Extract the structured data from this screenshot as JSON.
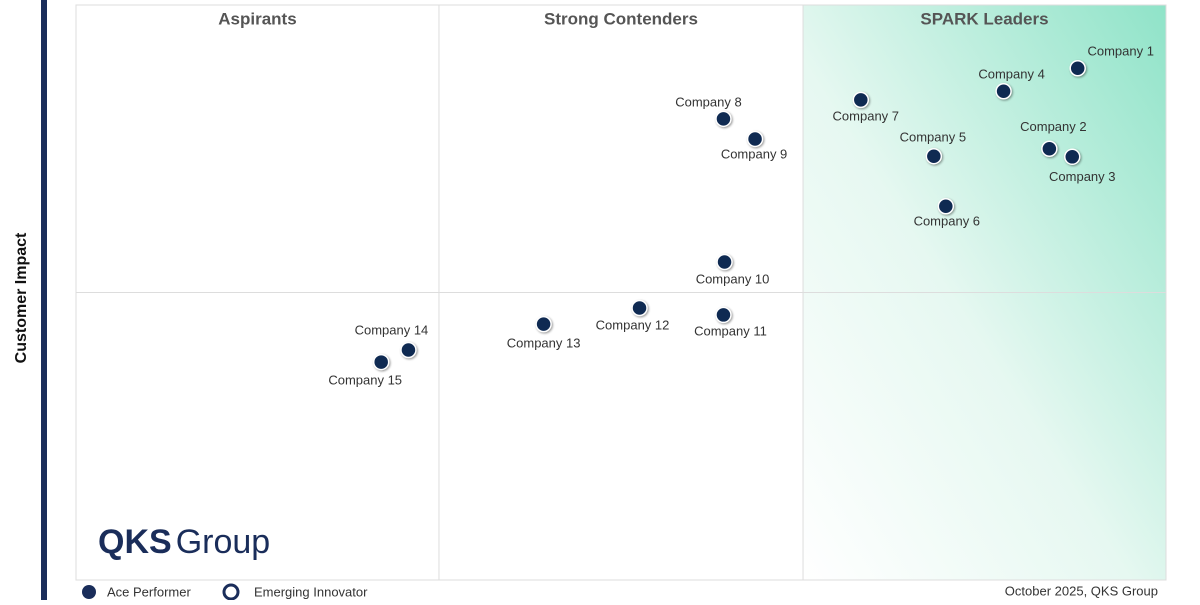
{
  "chart_data": {
    "type": "scatter",
    "y_label": "Customer Impact",
    "quadrants": [
      "Aspirants",
      "Strong Contenders",
      "SPARK Leaders"
    ],
    "x_dividers": [
      33.3,
      66.7
    ],
    "y_dividers": [
      50
    ],
    "xlim": [
      0,
      100
    ],
    "ylim": [
      0,
      100
    ],
    "series": [
      {
        "color": "#0f2a52",
        "labels": [
          "Company 1",
          "Company 2",
          "Company 3",
          "Company 4",
          "Company  5",
          "Company 6",
          "Company 7",
          "Company 8",
          "Company 9",
          "Company 10",
          "Company 11",
          "Company 12",
          "Company 13",
          "Company 14",
          "Company 15"
        ],
        "x": [
          91.9,
          89.3,
          91.4,
          85.1,
          78.7,
          79.8,
          72.0,
          59.4,
          62.3,
          59.5,
          59.4,
          51.7,
          42.9,
          30.5,
          28.0
        ],
        "values": [
          89.0,
          75.0,
          73.6,
          85.0,
          73.7,
          65.0,
          83.5,
          80.2,
          76.7,
          55.3,
          46.1,
          47.3,
          44.5,
          40.0,
          37.9
        ]
      }
    ],
    "logo": {
      "bold": "QKS",
      "light": "Group"
    },
    "legend": [
      "Ace Performer",
      "Emerging Innovator"
    ],
    "footer": "October 2025, QKS Group"
  }
}
